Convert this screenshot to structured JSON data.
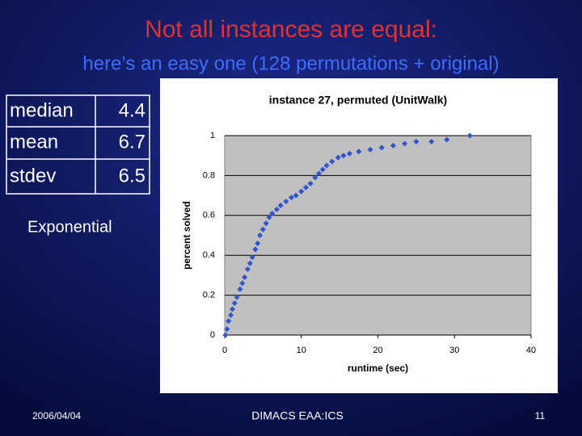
{
  "title": "Not all instances are equal:",
  "subtitle": "here’s an easy one (128 permutations + original)",
  "table": {
    "rows": [
      [
        "median",
        4.4
      ],
      [
        "mean",
        6.7
      ],
      [
        "stdev",
        6.5
      ]
    ]
  },
  "note": "Exponential",
  "footer": {
    "date": "2006/04/04",
    "center": "DIMACS EAA:ICS",
    "page": 11
  },
  "chart_data": {
    "type": "scatter",
    "title": "instance 27, permuted (UnitWalk)",
    "xlabel": "runtime (sec)",
    "ylabel": "percent solved",
    "x": [
      0.1,
      0.3,
      0.5,
      0.8,
      1,
      1.3,
      1.6,
      2,
      2.3,
      2.6,
      3,
      3.3,
      3.6,
      4,
      4.3,
      4.6,
      5,
      5.4,
      5.8,
      6.2,
      6.8,
      7.3,
      8,
      8.7,
      9.3,
      10,
      10.6,
      11.2,
      11.8,
      12.3,
      12.8,
      13.3,
      14,
      14.8,
      15.5,
      16.3,
      17.5,
      19,
      20.5,
      22,
      23.5,
      25,
      27,
      29,
      32
    ],
    "values": [
      0,
      0.03,
      0.07,
      0.1,
      0.13,
      0.16,
      0.19,
      0.23,
      0.26,
      0.29,
      0.33,
      0.36,
      0.39,
      0.43,
      0.46,
      0.5,
      0.53,
      0.56,
      0.59,
      0.61,
      0.63,
      0.65,
      0.67,
      0.69,
      0.7,
      0.72,
      0.74,
      0.76,
      0.79,
      0.81,
      0.83,
      0.85,
      0.87,
      0.89,
      0.9,
      0.91,
      0.92,
      0.93,
      0.94,
      0.95,
      0.96,
      0.97,
      0.97,
      0.98,
      1
    ],
    "color": "#3355cc",
    "xlim": [
      0,
      40
    ],
    "xticks": [
      0,
      10,
      20,
      30,
      40
    ],
    "ylim": [
      0,
      1
    ],
    "yticks": [
      0,
      0.2,
      0.4,
      0.6,
      0.8,
      1
    ],
    "grid": true
  }
}
